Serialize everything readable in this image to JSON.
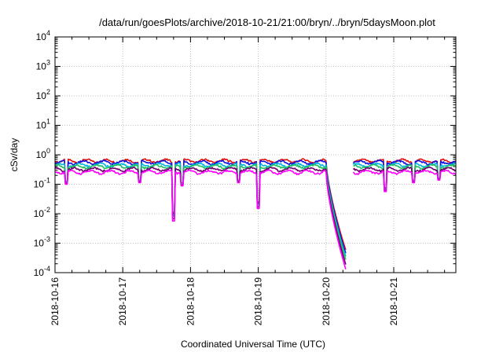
{
  "chart_data": {
    "type": "line",
    "title": "/data/run/goesPlots/archive/2018-10-21/21:00/bryn/../bryn/5daysMoon.plot",
    "xlabel": "Coordinated Universal Time (UTC)",
    "ylabel": "cSv/day",
    "x_scale": "time",
    "xlim": [
      "2018-10-16T00:00",
      "2018-10-21T22:00"
    ],
    "x_ticks": [
      "2018-10-16",
      "2018-10-17",
      "2018-10-18",
      "2018-10-19",
      "2018-10-20",
      "2018-10-21"
    ],
    "y_scale": "log",
    "ylim": [
      0.0001,
      10000
    ],
    "y_ticks": [
      {
        "base": "10",
        "exp": "-4"
      },
      {
        "base": "10",
        "exp": "-3"
      },
      {
        "base": "10",
        "exp": "-2"
      },
      {
        "base": "10",
        "exp": "-1"
      },
      {
        "base": "10",
        "exp": "0"
      },
      {
        "base": "10",
        "exp": "1"
      },
      {
        "base": "10",
        "exp": "2"
      },
      {
        "base": "10",
        "exp": "3"
      },
      {
        "base": "10",
        "exp": "4"
      }
    ],
    "grid": true,
    "data_start": "2018-10-16T00:00",
    "data_end": "2018-10-21T22:00",
    "data_gap": [
      "2018-10-20T07:00",
      "2018-10-20T09:30"
    ],
    "series": [
      {
        "color": "#e01010",
        "level": 0.62,
        "spike_depth": 1.0
      },
      {
        "color": "#1010e0",
        "level": 0.55,
        "spike_depth": 1.1
      },
      {
        "color": "#00b4e0",
        "level": 0.45,
        "spike_depth": 1.2
      },
      {
        "color": "#20c060",
        "level": 0.4,
        "spike_depth": 1.3
      },
      {
        "color": "#6a006a",
        "level": 0.32,
        "spike_depth": 1.45
      },
      {
        "color": "#ff00ff",
        "level": 0.26,
        "spike_depth": 1.6
      }
    ],
    "dips": [
      {
        "at": "2018-10-16T04:00",
        "min": 0.08
      },
      {
        "at": "2018-10-17T06:00",
        "min": 0.09
      },
      {
        "at": "2018-10-17T18:00",
        "min": 0.0045
      },
      {
        "at": "2018-10-17T21:00",
        "min": 0.07
      },
      {
        "at": "2018-10-18T17:00",
        "min": 0.09
      },
      {
        "at": "2018-10-19T00:00",
        "min": 0.012
      },
      {
        "at": "2018-10-20T21:00",
        "min": 0.045
      },
      {
        "at": "2018-10-21T07:00",
        "min": 0.09
      },
      {
        "at": "2018-10-21T16:00",
        "min": 0.11
      }
    ],
    "event": {
      "start": "2018-10-20T00:00",
      "end": "2018-10-20T07:00",
      "min": 0.00013
    }
  }
}
